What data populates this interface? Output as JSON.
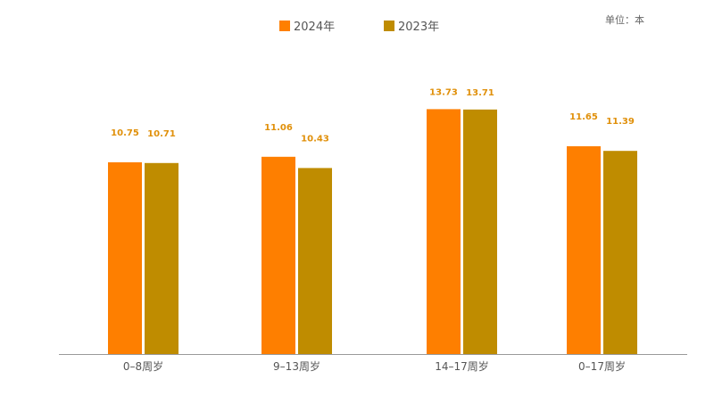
{
  "unit_label": "单位：本",
  "colors": {
    "series_2024": "#fe7f00",
    "series_2023": "#bf8c00",
    "axis": "#9a9a9a",
    "label_text": "#e0900a",
    "tick_text": "#555555",
    "unit_text": "#666666",
    "legend_text": "#555555"
  },
  "chart_data": {
    "type": "bar",
    "title": "",
    "xlabel": "",
    "ylabel": "",
    "categories": [
      "0–8周岁",
      "9–13周岁",
      "14–17周岁",
      "0–17周岁"
    ],
    "series": [
      {
        "name": "2024年",
        "values": [
          10.75,
          11.06,
          13.73,
          11.65
        ]
      },
      {
        "name": "2023年",
        "values": [
          10.71,
          10.43,
          13.71,
          11.39
        ]
      }
    ],
    "ylim": [
      0,
      15
    ],
    "grid": false,
    "legend_position": "top-center",
    "data_labels": true
  }
}
